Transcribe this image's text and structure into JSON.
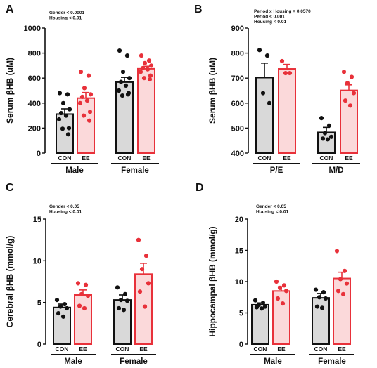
{
  "colors": {
    "con": "#111111",
    "ee": "#e8313a",
    "con_fill": "#d9d9d9",
    "ee_fill": "#fbd9da"
  },
  "chart_data": [
    {
      "type": "bar",
      "panel_label": "A",
      "ylabel": "Serum βHB (uM)",
      "ylim": [
        0,
        1000
      ],
      "yticks": [
        0,
        200,
        400,
        600,
        800,
        1000
      ],
      "stats": [
        "Gender < 0.0001",
        "Housing < 0.01"
      ],
      "groups": [
        "Male",
        "Female"
      ],
      "categories": [
        "CON",
        "EE"
      ],
      "bars": [
        {
          "group": "Male",
          "cond": "CON",
          "mean": 312,
          "sem": 42,
          "points": [
            480,
            470,
            400,
            350,
            320,
            300,
            270,
            200,
            195,
            150
          ]
        },
        {
          "group": "Male",
          "cond": "EE",
          "mean": 440,
          "sem": 45,
          "points": [
            650,
            620,
            520,
            470,
            450,
            420,
            400,
            330,
            300,
            260
          ]
        },
        {
          "group": "Female",
          "cond": "CON",
          "mean": 568,
          "sem": 38,
          "points": [
            820,
            780,
            650,
            600,
            570,
            540,
            500,
            480,
            460,
            470
          ]
        },
        {
          "group": "Female",
          "cond": "EE",
          "mean": 675,
          "sem": 20,
          "points": [
            780,
            740,
            720,
            700,
            680,
            670,
            650,
            620,
            600,
            590
          ]
        }
      ]
    },
    {
      "type": "bar",
      "panel_label": "B",
      "ylabel": "Serum βHB (uM)",
      "ylim": [
        400,
        900
      ],
      "yticks": [
        400,
        500,
        600,
        700,
        800,
        900
      ],
      "stats": [
        "Period x Housing = 0.0570",
        "Period < 0.001",
        "Housing < 0.01"
      ],
      "groups": [
        "P/E",
        "M/D"
      ],
      "categories": [
        "CON",
        "EE"
      ],
      "bars": [
        {
          "group": "P/E",
          "cond": "CON",
          "mean": 702,
          "sem": 58,
          "points": [
            812,
            790,
            640,
            600
          ]
        },
        {
          "group": "P/E",
          "cond": "EE",
          "mean": 737,
          "sem": 18,
          "points": [
            768,
            720,
            720
          ]
        },
        {
          "group": "M/D",
          "cond": "CON",
          "mean": 483,
          "sem": 20,
          "points": [
            540,
            510,
            480,
            465,
            458,
            455
          ]
        },
        {
          "group": "M/D",
          "cond": "EE",
          "mean": 651,
          "sem": 22,
          "points": [
            725,
            705,
            680,
            640,
            610,
            590
          ]
        }
      ]
    },
    {
      "type": "bar",
      "panel_label": "C",
      "ylabel": "Cerebral βHB (mmol/g)",
      "ylim": [
        0,
        15
      ],
      "yticks": [
        0,
        5,
        10,
        15
      ],
      "stats": [
        "Gender < 0.05",
        "Housing < 0.01"
      ],
      "groups": [
        "Male",
        "Female"
      ],
      "categories": [
        "CON",
        "EE"
      ],
      "bars": [
        {
          "group": "Male",
          "cond": "CON",
          "mean": 4.4,
          "sem": 0.4,
          "points": [
            5.3,
            4.8,
            4.5,
            4.3,
            3.7,
            3.3
          ]
        },
        {
          "group": "Male",
          "cond": "EE",
          "mean": 5.9,
          "sem": 0.6,
          "points": [
            7.3,
            7.1,
            6.0,
            5.8,
            4.6,
            4.3
          ]
        },
        {
          "group": "Female",
          "cond": "CON",
          "mean": 5.3,
          "sem": 0.6,
          "points": [
            6.8,
            6.0,
            5.3,
            5.2,
            4.3,
            4.1
          ]
        },
        {
          "group": "Female",
          "cond": "EE",
          "mean": 8.4,
          "sem": 1.3,
          "points": [
            12.5,
            10.6,
            9.0,
            7.3,
            6.3,
            4.5
          ]
        }
      ]
    },
    {
      "type": "bar",
      "panel_label": "D",
      "ylabel": "Hippocampal βHB (mmol/g)",
      "ylim": [
        0,
        20
      ],
      "yticks": [
        0,
        5,
        10,
        15,
        20
      ],
      "stats": [
        "Gender < 0.05",
        "Housing < 0.01"
      ],
      "groups": [
        "Male",
        "Female"
      ],
      "categories": [
        "CON",
        "EE"
      ],
      "bars": [
        {
          "group": "Male",
          "cond": "CON",
          "mean": 6.3,
          "sem": 0.3,
          "points": [
            7.0,
            6.6,
            6.3,
            6.0,
            5.9,
            5.7
          ]
        },
        {
          "group": "Male",
          "cond": "EE",
          "mean": 8.5,
          "sem": 0.7,
          "points": [
            10.0,
            9.4,
            9.0,
            8.5,
            7.3,
            6.5
          ]
        },
        {
          "group": "Female",
          "cond": "CON",
          "mean": 7.4,
          "sem": 0.7,
          "points": [
            8.7,
            8.3,
            7.5,
            7.3,
            6.0,
            5.8
          ]
        },
        {
          "group": "Female",
          "cond": "EE",
          "mean": 10.5,
          "sem": 1.0,
          "points": [
            14.9,
            11.7,
            10.4,
            9.7,
            8.5,
            8.0
          ]
        }
      ]
    }
  ]
}
